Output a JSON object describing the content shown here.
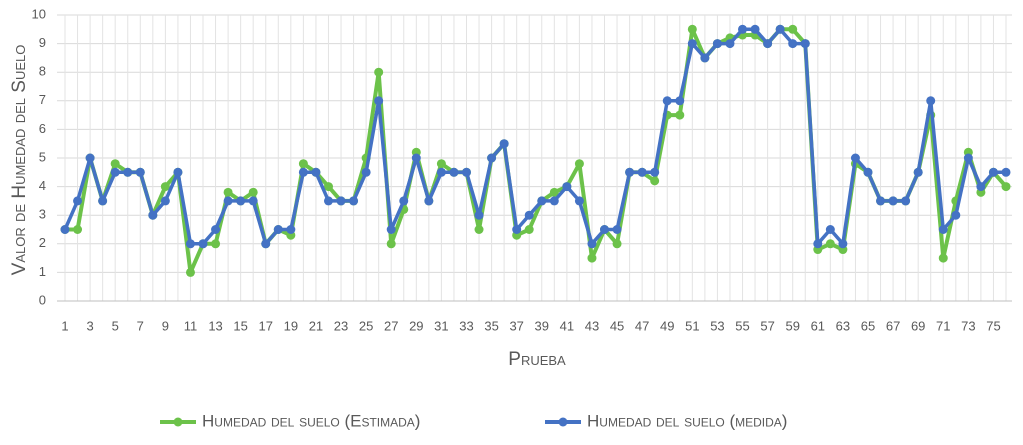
{
  "chart_data": {
    "type": "line",
    "y_label": "Valor de Humedad del Suelo",
    "x_label": "Prueba",
    "categories": [
      1,
      null,
      3,
      null,
      5,
      null,
      7,
      null,
      9,
      null,
      11,
      null,
      13,
      null,
      15,
      null,
      17,
      null,
      19,
      null,
      21,
      null,
      23,
      null,
      25,
      null,
      27,
      null,
      29,
      null,
      31,
      null,
      33,
      null,
      35,
      null,
      37,
      null,
      39,
      null,
      41,
      null,
      43,
      null,
      45,
      null,
      47,
      null,
      49,
      null,
      51,
      null,
      53,
      null,
      55,
      null,
      57,
      null,
      59,
      null,
      61,
      null,
      63,
      null,
      65,
      null,
      67,
      null,
      69,
      null,
      71,
      null,
      73,
      null,
      75,
      null
    ],
    "series": [
      {
        "name": "Humedad del suelo (Estimada)",
        "color": "#6cc24a",
        "values": [
          2.5,
          2.5,
          5,
          3.5,
          4.8,
          4.5,
          4.5,
          3,
          4,
          4.5,
          1,
          2,
          2,
          3.8,
          3.5,
          3.8,
          2,
          2.5,
          2.3,
          4.8,
          4.5,
          4,
          3.5,
          3.5,
          5,
          8,
          2,
          3.2,
          5.2,
          3.5,
          4.8,
          4.5,
          4.5,
          2.5,
          5,
          5.5,
          2.3,
          2.5,
          3.5,
          3.8,
          4,
          4.8,
          1.5,
          2.5,
          2,
          4.5,
          4.5,
          4.2,
          6.5,
          6.5,
          9.5,
          8.5,
          9,
          9.2,
          9.3,
          9.3,
          9,
          9.5,
          9.5,
          9,
          1.8,
          2,
          1.8,
          4.8,
          4.5,
          3.5,
          3.5,
          3.5,
          4.5,
          6.5,
          1.5,
          3.5,
          5.2,
          3.8,
          4.5,
          4
        ]
      },
      {
        "name": "Humedad del suelo (medida)",
        "color": "#4472c4",
        "values": [
          2.5,
          3.5,
          5,
          3.5,
          4.5,
          4.5,
          4.5,
          3,
          3.5,
          4.5,
          2,
          2,
          2.5,
          3.5,
          3.5,
          3.5,
          2,
          2.5,
          2.5,
          4.5,
          4.5,
          3.5,
          3.5,
          3.5,
          4.5,
          7,
          2.5,
          3.5,
          5,
          3.5,
          4.5,
          4.5,
          4.5,
          3,
          5,
          5.5,
          2.5,
          3,
          3.5,
          3.5,
          4,
          3.5,
          2,
          2.5,
          2.5,
          4.5,
          4.5,
          4.5,
          7,
          7,
          9,
          8.5,
          9,
          9,
          9.5,
          9.5,
          9,
          9.5,
          9,
          9,
          2,
          2.5,
          2,
          5,
          4.5,
          3.5,
          3.5,
          3.5,
          4.5,
          7,
          2.5,
          3,
          5,
          4,
          4.5,
          4.5
        ]
      }
    ],
    "ylim": [
      0,
      10
    ],
    "yticks": [
      0,
      1,
      2,
      3,
      4,
      5,
      6,
      7,
      8,
      9,
      10
    ],
    "grid": true
  }
}
